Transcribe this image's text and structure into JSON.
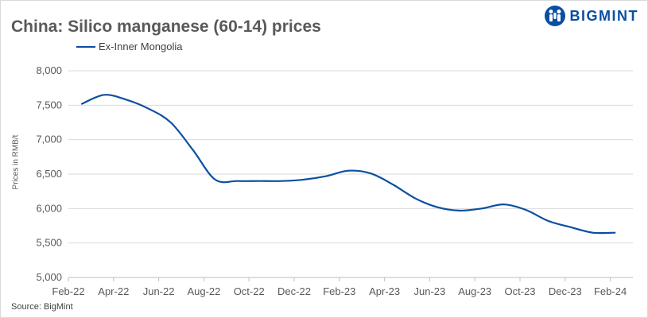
{
  "title": "China: Silico manganese (60-14) prices",
  "brand": "BIGMINT",
  "source": "Source: BigMint",
  "colors": {
    "series": "#0b4ea2",
    "brand": "#0b4ea2",
    "grid": "#d9d9d9",
    "title": "#595959"
  },
  "chart_data": {
    "type": "line",
    "title": "China: Silico manganese (60-14) prices",
    "xlabel": "",
    "ylabel": "Prices in RMB/t",
    "ylim": [
      5000,
      8000
    ],
    "y_ticks": [
      "5,000",
      "5,500",
      "6,000",
      "6,500",
      "7,000",
      "7,500",
      "8,000"
    ],
    "x_ticks": [
      "Feb-22",
      "Apr-22",
      "Jun-22",
      "Aug-22",
      "Oct-22",
      "Dec-22",
      "Feb-23",
      "Apr-23",
      "Jun-23",
      "Aug-23",
      "Oct-23",
      "Dec-23",
      "Feb-24"
    ],
    "grid": "horizontal",
    "legend_position": "top-left",
    "series": [
      {
        "name": "Ex-Inner Mongolia",
        "x": [
          "Feb-22",
          "Mar-22",
          "Apr-22",
          "May-22",
          "Jun-22",
          "Jul-22",
          "Aug-22",
          "Sep-22",
          "Oct-22",
          "Nov-22",
          "Dec-22",
          "Jan-23",
          "Feb-23",
          "Mar-23",
          "Apr-23",
          "May-23",
          "Jun-23",
          "Jul-23",
          "Aug-23",
          "Sep-23",
          "Oct-23",
          "Nov-23",
          "Dec-23",
          "Jan-24",
          "Feb-24"
        ],
        "values": [
          7520,
          7650,
          7580,
          7450,
          7250,
          6850,
          6420,
          6400,
          6400,
          6400,
          6420,
          6470,
          6550,
          6510,
          6350,
          6150,
          6020,
          5970,
          6000,
          6060,
          5980,
          5820,
          5730,
          5650,
          5650
        ]
      }
    ]
  }
}
